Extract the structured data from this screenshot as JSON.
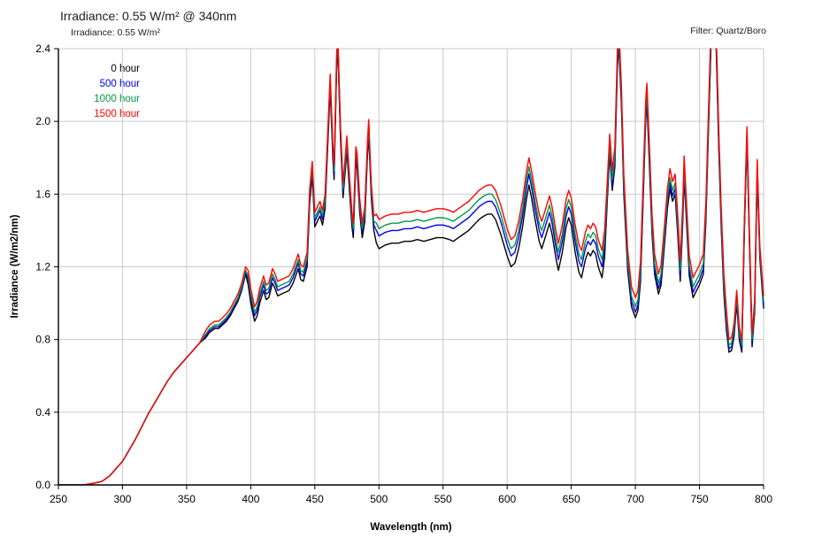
{
  "page": {
    "background": "#ffffff"
  },
  "header": {
    "title": "Irradiance: 0.55 W/m² @ 340nm",
    "subtitle": "Irradiance: 0.55 W/m²",
    "filter_note": "Filter: Quartz/Boro"
  },
  "colors": {
    "grid": "#c9c9c9",
    "frame_minor": "#c9c9c9",
    "axis": "#000000",
    "text": "#1c1c1c"
  },
  "chart_data": {
    "type": "line",
    "title": "Irradiance: 0.55 W/m² @ 340nm",
    "subtitle": "Irradiance: 0.55 W/m²",
    "annotation_top_right": "Filter: Quartz/Boro",
    "xlabel": "Wavelength (nm)",
    "ylabel": "Irradiance (W/m2/nm)",
    "xlim": [
      250,
      800
    ],
    "ylim": [
      0.0,
      2.4
    ],
    "xticks": [
      250,
      300,
      350,
      400,
      450,
      500,
      550,
      600,
      650,
      700,
      750,
      800
    ],
    "yticks": [
      0.0,
      0.4,
      0.8,
      1.2,
      1.6,
      2.0,
      2.4
    ],
    "ytick_labels": [
      "0.0",
      "0.4",
      "0.8",
      "1.2",
      "1.6",
      "2.0",
      "2.4"
    ],
    "grid": true,
    "legend_position": "top-left",
    "legend": [
      {
        "label": "0 hour",
        "color": "#000000"
      },
      {
        "label": "500 hour",
        "color": "#0000ee"
      },
      {
        "label": "1000 hour",
        "color": "#009944"
      },
      {
        "label": "1500 hour",
        "color": "#ff0000"
      }
    ],
    "x": [
      250,
      260,
      270,
      278,
      284,
      290,
      295,
      300,
      305,
      310,
      315,
      320,
      325,
      330,
      335,
      340,
      345,
      350,
      355,
      360,
      365,
      368,
      372,
      375,
      378,
      381,
      384,
      387,
      390,
      393,
      396,
      398,
      400,
      403,
      405,
      407,
      410,
      412,
      414,
      417,
      419,
      421,
      424,
      427,
      430,
      433,
      435,
      437,
      439,
      441,
      444,
      446,
      448,
      450,
      452,
      454,
      456,
      458,
      460,
      462,
      464,
      465,
      467,
      468,
      470,
      472,
      474,
      475,
      477,
      479,
      480,
      482,
      483,
      485,
      487,
      489,
      491,
      492,
      494,
      496,
      498,
      500,
      505,
      510,
      515,
      520,
      525,
      530,
      535,
      540,
      545,
      550,
      555,
      558,
      562,
      566,
      570,
      574,
      578,
      582,
      585,
      588,
      591,
      595,
      600,
      603,
      606,
      609,
      612,
      615,
      617,
      619,
      622,
      625,
      627,
      630,
      633,
      635,
      638,
      640,
      643,
      646,
      648,
      650,
      653,
      656,
      658,
      661,
      663,
      665,
      667,
      669,
      671,
      674,
      676,
      678,
      680,
      682,
      684,
      686,
      687,
      689,
      691,
      694,
      697,
      700,
      702,
      704,
      706,
      708,
      709,
      711,
      713,
      715,
      718,
      720,
      722,
      725,
      727,
      729,
      731,
      733,
      735,
      737,
      738,
      740,
      742,
      745,
      747,
      750,
      753,
      755,
      757,
      759,
      761,
      763,
      765,
      767,
      769,
      771,
      773,
      775,
      777,
      779,
      781,
      783,
      785,
      787,
      789,
      791,
      793,
      795,
      797,
      800
    ],
    "series": [
      {
        "name": "0 hour",
        "color": "#000000",
        "values": [
          0.0,
          0.0,
          0.0,
          0.01,
          0.02,
          0.05,
          0.09,
          0.13,
          0.19,
          0.25,
          0.32,
          0.39,
          0.45,
          0.51,
          0.57,
          0.62,
          0.66,
          0.7,
          0.74,
          0.78,
          0.81,
          0.84,
          0.86,
          0.86,
          0.88,
          0.9,
          0.93,
          0.97,
          1.01,
          1.07,
          1.16,
          1.1,
          1.0,
          0.9,
          0.93,
          1.0,
          1.07,
          1.02,
          1.03,
          1.11,
          1.08,
          1.04,
          1.05,
          1.06,
          1.07,
          1.11,
          1.15,
          1.19,
          1.13,
          1.12,
          1.2,
          1.55,
          1.7,
          1.42,
          1.45,
          1.48,
          1.43,
          1.52,
          1.85,
          2.18,
          1.8,
          1.68,
          2.3,
          2.38,
          1.9,
          1.58,
          1.75,
          1.84,
          1.62,
          1.42,
          1.36,
          1.78,
          1.74,
          1.5,
          1.36,
          1.45,
          1.8,
          1.93,
          1.58,
          1.4,
          1.33,
          1.3,
          1.32,
          1.33,
          1.33,
          1.34,
          1.34,
          1.35,
          1.34,
          1.35,
          1.36,
          1.36,
          1.35,
          1.34,
          1.36,
          1.38,
          1.4,
          1.43,
          1.46,
          1.48,
          1.49,
          1.49,
          1.46,
          1.38,
          1.26,
          1.2,
          1.22,
          1.3,
          1.42,
          1.57,
          1.65,
          1.58,
          1.45,
          1.34,
          1.3,
          1.37,
          1.44,
          1.38,
          1.25,
          1.18,
          1.28,
          1.42,
          1.47,
          1.43,
          1.28,
          1.17,
          1.14,
          1.24,
          1.28,
          1.26,
          1.29,
          1.27,
          1.2,
          1.14,
          1.25,
          1.55,
          1.82,
          1.62,
          1.75,
          2.3,
          2.42,
          2.1,
          1.6,
          1.18,
          0.98,
          0.92,
          0.96,
          1.12,
          1.55,
          2.0,
          2.1,
          1.75,
          1.38,
          1.16,
          1.05,
          1.1,
          1.26,
          1.52,
          1.63,
          1.56,
          1.6,
          1.38,
          1.12,
          1.45,
          1.7,
          1.42,
          1.15,
          1.03,
          1.06,
          1.1,
          1.16,
          1.45,
          1.95,
          2.42,
          2.45,
          2.4,
          1.85,
          1.4,
          1.05,
          0.85,
          0.73,
          0.74,
          0.82,
          1.0,
          0.8,
          0.73,
          1.4,
          1.9,
          1.3,
          0.76,
          0.95,
          1.72,
          1.25,
          0.97
        ]
      },
      {
        "name": "500 hour",
        "color": "#0000ee",
        "values": [
          0.0,
          0.0,
          0.0,
          0.01,
          0.02,
          0.05,
          0.09,
          0.13,
          0.19,
          0.25,
          0.32,
          0.39,
          0.45,
          0.51,
          0.57,
          0.62,
          0.66,
          0.7,
          0.74,
          0.78,
          0.82,
          0.85,
          0.87,
          0.87,
          0.89,
          0.91,
          0.94,
          0.98,
          1.02,
          1.08,
          1.17,
          1.13,
          1.03,
          0.93,
          0.96,
          1.03,
          1.1,
          1.05,
          1.06,
          1.14,
          1.11,
          1.07,
          1.08,
          1.09,
          1.1,
          1.14,
          1.18,
          1.22,
          1.16,
          1.15,
          1.23,
          1.58,
          1.73,
          1.45,
          1.48,
          1.51,
          1.46,
          1.55,
          1.88,
          2.21,
          1.83,
          1.71,
          2.33,
          2.41,
          1.93,
          1.61,
          1.78,
          1.87,
          1.65,
          1.45,
          1.39,
          1.81,
          1.77,
          1.53,
          1.39,
          1.48,
          1.83,
          1.96,
          1.61,
          1.43,
          1.4,
          1.37,
          1.39,
          1.4,
          1.4,
          1.41,
          1.41,
          1.42,
          1.41,
          1.42,
          1.43,
          1.43,
          1.42,
          1.41,
          1.43,
          1.45,
          1.47,
          1.5,
          1.53,
          1.55,
          1.56,
          1.56,
          1.53,
          1.45,
          1.32,
          1.26,
          1.28,
          1.36,
          1.48,
          1.63,
          1.71,
          1.64,
          1.51,
          1.4,
          1.36,
          1.43,
          1.5,
          1.44,
          1.31,
          1.24,
          1.34,
          1.48,
          1.53,
          1.49,
          1.34,
          1.23,
          1.2,
          1.3,
          1.34,
          1.32,
          1.35,
          1.33,
          1.26,
          1.2,
          1.31,
          1.58,
          1.85,
          1.65,
          1.78,
          2.33,
          2.45,
          2.13,
          1.63,
          1.21,
          1.01,
          0.95,
          0.99,
          1.15,
          1.58,
          2.03,
          2.13,
          1.78,
          1.41,
          1.19,
          1.08,
          1.13,
          1.29,
          1.55,
          1.66,
          1.59,
          1.63,
          1.41,
          1.15,
          1.48,
          1.73,
          1.45,
          1.18,
          1.06,
          1.09,
          1.13,
          1.19,
          1.48,
          1.98,
          2.45,
          2.48,
          2.43,
          1.88,
          1.43,
          1.08,
          0.88,
          0.75,
          0.76,
          0.84,
          1.02,
          0.82,
          0.75,
          1.42,
          1.92,
          1.32,
          0.78,
          0.97,
          1.74,
          1.27,
          0.99
        ]
      },
      {
        "name": "1000 hour",
        "color": "#009944",
        "values": [
          0.0,
          0.0,
          0.0,
          0.01,
          0.02,
          0.05,
          0.09,
          0.13,
          0.19,
          0.25,
          0.32,
          0.39,
          0.45,
          0.51,
          0.57,
          0.62,
          0.66,
          0.7,
          0.74,
          0.78,
          0.83,
          0.86,
          0.88,
          0.88,
          0.9,
          0.92,
          0.95,
          0.99,
          1.03,
          1.09,
          1.18,
          1.15,
          1.05,
          0.95,
          0.98,
          1.05,
          1.12,
          1.07,
          1.08,
          1.16,
          1.13,
          1.09,
          1.1,
          1.11,
          1.12,
          1.16,
          1.2,
          1.24,
          1.18,
          1.17,
          1.25,
          1.6,
          1.75,
          1.47,
          1.5,
          1.53,
          1.48,
          1.57,
          1.9,
          2.23,
          1.85,
          1.73,
          2.35,
          2.43,
          1.95,
          1.63,
          1.8,
          1.89,
          1.67,
          1.47,
          1.41,
          1.83,
          1.79,
          1.55,
          1.41,
          1.5,
          1.85,
          1.98,
          1.63,
          1.45,
          1.44,
          1.41,
          1.43,
          1.44,
          1.44,
          1.45,
          1.45,
          1.46,
          1.45,
          1.46,
          1.47,
          1.47,
          1.46,
          1.45,
          1.47,
          1.49,
          1.51,
          1.54,
          1.57,
          1.59,
          1.6,
          1.6,
          1.57,
          1.49,
          1.36,
          1.3,
          1.32,
          1.4,
          1.52,
          1.67,
          1.75,
          1.68,
          1.55,
          1.44,
          1.4,
          1.47,
          1.54,
          1.48,
          1.35,
          1.28,
          1.38,
          1.52,
          1.57,
          1.53,
          1.38,
          1.27,
          1.24,
          1.34,
          1.38,
          1.36,
          1.39,
          1.37,
          1.3,
          1.24,
          1.35,
          1.61,
          1.88,
          1.68,
          1.81,
          2.36,
          2.48,
          2.16,
          1.66,
          1.24,
          1.04,
          0.98,
          1.02,
          1.18,
          1.61,
          2.06,
          2.16,
          1.81,
          1.44,
          1.22,
          1.11,
          1.16,
          1.32,
          1.58,
          1.69,
          1.62,
          1.66,
          1.44,
          1.18,
          1.51,
          1.76,
          1.48,
          1.21,
          1.09,
          1.12,
          1.16,
          1.22,
          1.51,
          2.01,
          2.48,
          2.51,
          2.46,
          1.91,
          1.46,
          1.11,
          0.91,
          0.77,
          0.78,
          0.86,
          1.04,
          0.84,
          0.77,
          1.44,
          1.94,
          1.34,
          0.8,
          0.99,
          1.76,
          1.29,
          1.01
        ]
      },
      {
        "name": "1500 hour",
        "color": "#ff0000",
        "values": [
          0.0,
          0.0,
          0.0,
          0.01,
          0.02,
          0.05,
          0.09,
          0.13,
          0.19,
          0.25,
          0.32,
          0.39,
          0.45,
          0.51,
          0.57,
          0.62,
          0.66,
          0.7,
          0.74,
          0.78,
          0.85,
          0.88,
          0.9,
          0.9,
          0.92,
          0.94,
          0.97,
          1.01,
          1.05,
          1.11,
          1.2,
          1.18,
          1.08,
          0.98,
          1.01,
          1.08,
          1.15,
          1.1,
          1.11,
          1.19,
          1.16,
          1.12,
          1.13,
          1.14,
          1.15,
          1.19,
          1.23,
          1.27,
          1.21,
          1.2,
          1.28,
          1.63,
          1.78,
          1.5,
          1.53,
          1.56,
          1.51,
          1.6,
          1.93,
          2.26,
          1.88,
          1.76,
          2.38,
          2.46,
          1.98,
          1.66,
          1.83,
          1.92,
          1.7,
          1.5,
          1.44,
          1.86,
          1.82,
          1.58,
          1.44,
          1.53,
          1.88,
          2.01,
          1.66,
          1.48,
          1.49,
          1.46,
          1.48,
          1.49,
          1.49,
          1.5,
          1.5,
          1.51,
          1.5,
          1.51,
          1.52,
          1.52,
          1.51,
          1.5,
          1.52,
          1.54,
          1.56,
          1.59,
          1.62,
          1.64,
          1.65,
          1.65,
          1.62,
          1.54,
          1.41,
          1.35,
          1.37,
          1.45,
          1.57,
          1.72,
          1.8,
          1.73,
          1.6,
          1.49,
          1.45,
          1.52,
          1.59,
          1.53,
          1.4,
          1.33,
          1.43,
          1.57,
          1.62,
          1.58,
          1.43,
          1.32,
          1.29,
          1.39,
          1.43,
          1.41,
          1.44,
          1.42,
          1.35,
          1.29,
          1.4,
          1.66,
          1.93,
          1.73,
          1.86,
          2.41,
          2.53,
          2.21,
          1.71,
          1.29,
          1.09,
          1.03,
          1.07,
          1.23,
          1.66,
          2.11,
          2.21,
          1.86,
          1.49,
          1.27,
          1.16,
          1.21,
          1.37,
          1.63,
          1.74,
          1.67,
          1.71,
          1.49,
          1.23,
          1.56,
          1.81,
          1.53,
          1.26,
          1.14,
          1.17,
          1.21,
          1.27,
          1.56,
          2.06,
          2.53,
          2.56,
          2.51,
          1.96,
          1.51,
          1.16,
          0.96,
          0.8,
          0.81,
          0.89,
          1.07,
          0.87,
          0.8,
          1.47,
          1.97,
          1.37,
          0.83,
          1.02,
          1.79,
          1.32,
          1.04
        ]
      }
    ]
  }
}
